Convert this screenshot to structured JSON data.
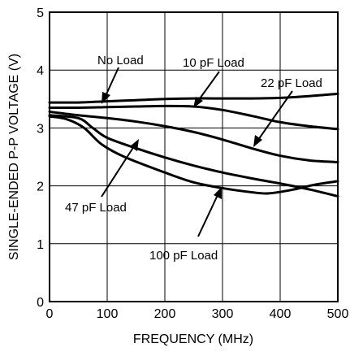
{
  "chart_data": {
    "type": "line",
    "title": "",
    "xlabel": "FREQUENCY (MHz)",
    "ylabel": "SINGLE-ENDED P-P VOLTAGE (V)",
    "xlim": [
      0,
      500
    ],
    "ylim": [
      0,
      5
    ],
    "xticks": [
      "0",
      "100",
      "200",
      "300",
      "400",
      "500"
    ],
    "yticks": [
      "0",
      "1",
      "2",
      "3",
      "4",
      "5"
    ],
    "grid": true,
    "legend": "none",
    "series": [
      {
        "name": "No Load",
        "x": [
          0,
          50,
          100,
          150,
          200,
          250,
          300,
          350,
          400,
          450,
          500
        ],
        "y": [
          3.44,
          3.44,
          3.46,
          3.48,
          3.5,
          3.51,
          3.51,
          3.51,
          3.52,
          3.55,
          3.59
        ]
      },
      {
        "name": "10 pF Load",
        "x": [
          0,
          50,
          100,
          150,
          200,
          250,
          300,
          350,
          400,
          450,
          500
        ],
        "y": [
          3.35,
          3.35,
          3.36,
          3.37,
          3.38,
          3.37,
          3.31,
          3.21,
          3.1,
          3.03,
          2.98
        ]
      },
      {
        "name": "22 pF Load",
        "x": [
          0,
          50,
          100,
          150,
          200,
          250,
          300,
          350,
          400,
          450,
          500
        ],
        "y": [
          3.28,
          3.22,
          3.17,
          3.11,
          3.03,
          2.93,
          2.8,
          2.65,
          2.52,
          2.44,
          2.41
        ]
      },
      {
        "name": "47 pF Load",
        "x": [
          0,
          50,
          75,
          100,
          150,
          200,
          250,
          300,
          350,
          400,
          450,
          500
        ],
        "y": [
          3.22,
          3.17,
          3.0,
          2.83,
          2.65,
          2.49,
          2.35,
          2.23,
          2.13,
          2.04,
          1.94,
          1.82
        ]
      },
      {
        "name": "100 pF Load",
        "x": [
          0,
          30,
          60,
          90,
          130,
          200,
          250,
          300,
          350,
          380,
          420,
          460,
          500
        ],
        "y": [
          3.2,
          3.15,
          3.0,
          2.72,
          2.5,
          2.23,
          2.06,
          1.96,
          1.89,
          1.87,
          1.93,
          2.02,
          2.08
        ]
      }
    ]
  },
  "annotations": [
    {
      "id": "no-load",
      "text": "No Load"
    },
    {
      "id": "10pf",
      "text": "10 pF Load"
    },
    {
      "id": "22pf",
      "text": "22 pF Load"
    },
    {
      "id": "47pf",
      "text": "47 pF Load"
    },
    {
      "id": "100pf",
      "text": "100 pF Load"
    }
  ]
}
